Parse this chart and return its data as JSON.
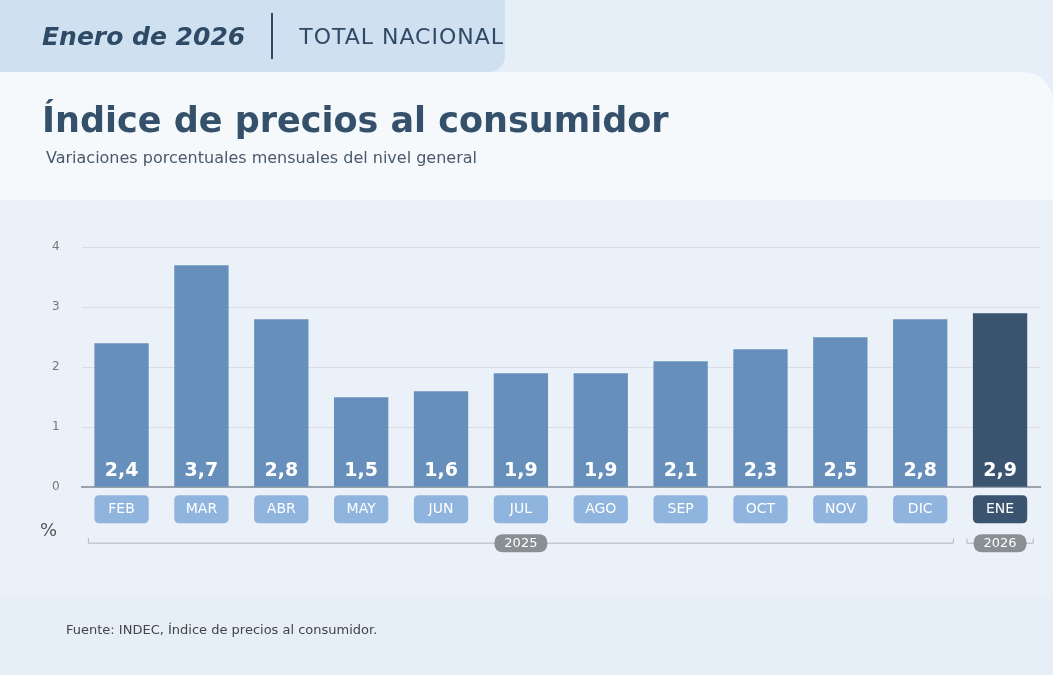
{
  "chart_data": {
    "type": "bar",
    "title": "Índice de precios al consumidor",
    "subtitle": "Variaciones porcentuales mensuales del nivel general",
    "ylabel": "%",
    "annotations": [
      "Enero de 2026",
      "TOTAL NACIONAL",
      "2025",
      "2026",
      "Fuente: INDEC, Índice de precios al consumidor."
    ],
    "categories": [
      "FEB",
      "MAR",
      "ABR",
      "MAY",
      "JUN",
      "JUL",
      "AGO",
      "SEP",
      "OCT",
      "NOV",
      "DIC",
      "ENE"
    ],
    "values": [
      2.4,
      3.7,
      2.8,
      1.5,
      1.6,
      1.9,
      1.9,
      2.1,
      2.3,
      2.5,
      2.8,
      2.9
    ],
    "value_labels": [
      "2,4",
      "3,7",
      "2,8",
      "1,5",
      "1,6",
      "1,9",
      "1,9",
      "2,1",
      "2,3",
      "2,5",
      "2,8",
      "2,9"
    ],
    "colors": [
      "#6690bb",
      "#6690bb",
      "#6690bb",
      "#6690bb",
      "#6690bb",
      "#6690bb",
      "#6690bb",
      "#6690bb",
      "#6690bb",
      "#6690bb",
      "#6690bb",
      "#3b5470"
    ],
    "ylim": [
      0,
      4
    ],
    "yticks": [
      0,
      1,
      2,
      3,
      4
    ],
    "grid": "y",
    "legend": false
  }
}
